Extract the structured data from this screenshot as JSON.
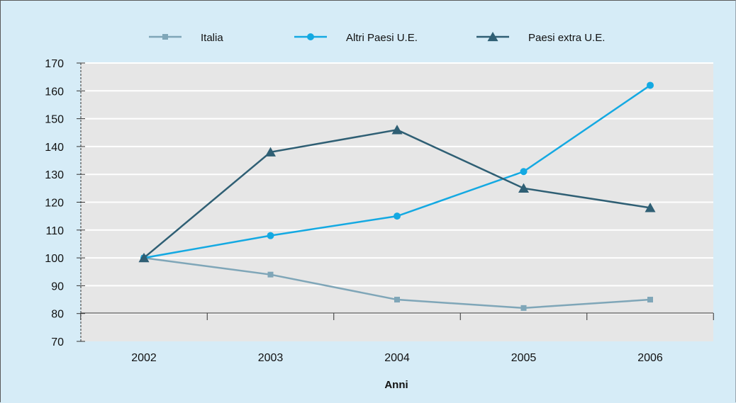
{
  "chart_data": {
    "type": "line",
    "title": "",
    "xlabel": "Anni",
    "ylabel": "",
    "categories": [
      "2002",
      "2003",
      "2004",
      "2005",
      "2006"
    ],
    "ylim": [
      70,
      170
    ],
    "yticks": [
      70,
      80,
      90,
      100,
      110,
      120,
      130,
      140,
      150,
      160,
      170
    ],
    "grid": true,
    "legend_position": "top-center",
    "series": [
      {
        "name": "Italia",
        "values": [
          100,
          94,
          85,
          82,
          85
        ],
        "color": "#7fa6b8",
        "marker": "square"
      },
      {
        "name": "Altri Paesi U.E.",
        "values": [
          100,
          108,
          115,
          131,
          162
        ],
        "color": "#14a9e2",
        "marker": "circle"
      },
      {
        "name": "Paesi extra U.E.",
        "values": [
          100,
          138,
          146,
          125,
          118
        ],
        "color": "#2f5f74",
        "marker": "triangle"
      }
    ]
  },
  "colors": {
    "background": "#d6ecf7",
    "plot_area": "#e6e6e6",
    "gridline": "#ffffff",
    "axis": "#333333"
  }
}
